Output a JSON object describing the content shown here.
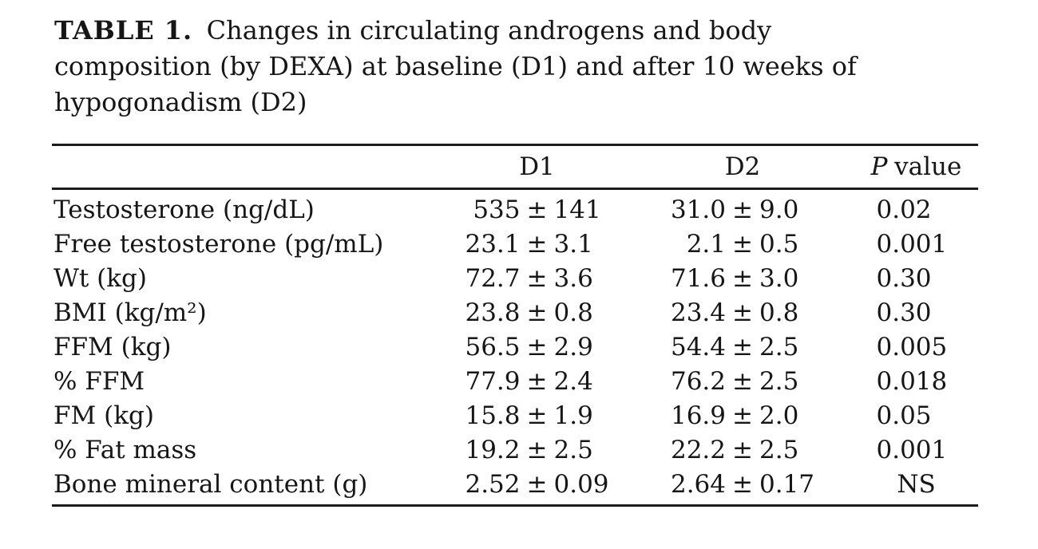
{
  "caption": {
    "label": "TABLE 1.",
    "line1": "Changes in circulating androgens and body",
    "line2": "composition (by DEXA) at baseline (D1) and after 10 weeks of",
    "line3": "hypogonadism (D2)"
  },
  "header": {
    "p_italic": "P",
    "p_rest": "value"
  },
  "chart_data": {
    "type": "table",
    "title": "TABLE 1. Changes in circulating androgens and body composition (by DEXA) at baseline (D1) and after 10 weeks of hypogonadism (D2)",
    "columns": [
      "",
      "D1",
      "D2",
      "P value"
    ],
    "plus_minus": "±",
    "rows": [
      {
        "label": "Testosterone (ng/dL)",
        "d1_mean": "535",
        "d1_sd": "141",
        "d2_mean": "31.0",
        "d2_sd": "9.0",
        "p": "0.02"
      },
      {
        "label": "Free testosterone (pg/mL)",
        "d1_mean": "23.1",
        "d1_sd": "3.1",
        "d2_mean": "2.1",
        "d2_sd": "0.5",
        "p": "0.001"
      },
      {
        "label": "Wt (kg)",
        "d1_mean": "72.7",
        "d1_sd": "3.6",
        "d2_mean": "71.6",
        "d2_sd": "3.0",
        "p": "0.30"
      },
      {
        "label": "BMI (kg/m²)",
        "d1_mean": "23.8",
        "d1_sd": "0.8",
        "d2_mean": "23.4",
        "d2_sd": "0.8",
        "p": "0.30"
      },
      {
        "label": "FFM (kg)",
        "d1_mean": "56.5",
        "d1_sd": "2.9",
        "d2_mean": "54.4",
        "d2_sd": "2.5",
        "p": "0.005"
      },
      {
        "label": "% FFM",
        "d1_mean": "77.9",
        "d1_sd": "2.4",
        "d2_mean": "76.2",
        "d2_sd": "2.5",
        "p": "0.018"
      },
      {
        "label": "FM (kg)",
        "d1_mean": "15.8",
        "d1_sd": "1.9",
        "d2_mean": "16.9",
        "d2_sd": "2.0",
        "p": "0.05"
      },
      {
        "label": "% Fat mass",
        "d1_mean": "19.2",
        "d1_sd": "2.5",
        "d2_mean": "22.2",
        "d2_sd": "2.5",
        "p": "0.001"
      },
      {
        "label": "Bone mineral content (g)",
        "d1_mean": "2.52",
        "d1_sd": "0.09",
        "d2_mean": "2.64",
        "d2_sd": "0.17",
        "p": "NS"
      }
    ]
  }
}
